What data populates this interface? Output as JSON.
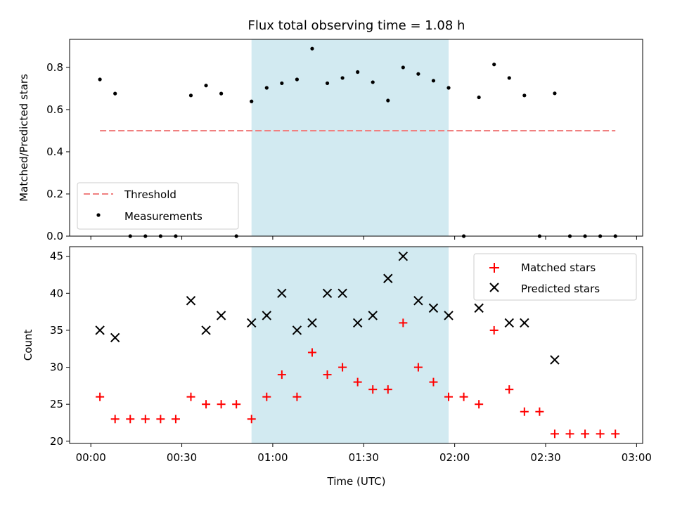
{
  "chart_data": [
    {
      "type": "scatter",
      "title": "Flux total observing time = 1.08 h",
      "ylabel": "Matched/Predicted stars",
      "xlabel": "",
      "xlim": [
        -7,
        182
      ],
      "ylim": [
        0,
        0.933
      ],
      "yticks": [
        0.0,
        0.2,
        0.4,
        0.6,
        0.8
      ],
      "ytick_labels": [
        "0.0",
        "0.2",
        "0.4",
        "0.6",
        "0.8"
      ],
      "xticks": [
        0,
        30,
        60,
        90,
        120,
        150,
        180
      ],
      "shaded_region": {
        "x0": 53,
        "x1": 118,
        "color": "#add8e6"
      },
      "threshold": {
        "name": "Threshold",
        "y": 0.5,
        "x0": 3,
        "x1": 173,
        "color": "#f08080"
      },
      "legend": {
        "placement": "lower-left",
        "entries": [
          "Threshold",
          "Measurements"
        ]
      },
      "series": [
        {
          "name": "Measurements",
          "color": "#000000",
          "x": [
            3,
            8,
            13,
            18,
            23,
            28,
            33,
            38,
            43,
            48,
            53,
            58,
            63,
            68,
            73,
            78,
            83,
            88,
            93,
            98,
            103,
            108,
            113,
            118,
            123,
            128,
            133,
            138,
            143,
            148,
            153,
            158,
            163,
            168,
            173
          ],
          "y": [
            0.743,
            0.676,
            0.0,
            0.0,
            0.0,
            0.0,
            0.667,
            0.714,
            0.676,
            0.0,
            0.639,
            0.703,
            0.725,
            0.743,
            0.889,
            0.725,
            0.75,
            0.778,
            0.73,
            0.643,
            0.8,
            0.769,
            0.737,
            0.703,
            0.0,
            0.658,
            0.814,
            0.75,
            0.667,
            0.0,
            0.677,
            0.0,
            0.0,
            0.0,
            0.0
          ]
        }
      ]
    },
    {
      "type": "scatter",
      "title": "",
      "ylabel": "Count",
      "xlabel": "Time (UTC)",
      "xlim": [
        -7,
        182
      ],
      "ylim": [
        19.7,
        46.3
      ],
      "yticks": [
        20,
        25,
        30,
        35,
        40,
        45
      ],
      "ytick_labels": [
        "20",
        "25",
        "30",
        "35",
        "40",
        "45"
      ],
      "xticks": [
        0,
        30,
        60,
        90,
        120,
        150,
        180
      ],
      "xtick_labels": [
        "00:00",
        "00:30",
        "01:00",
        "01:30",
        "02:00",
        "02:30",
        "03:00"
      ],
      "shaded_region": {
        "x0": 53,
        "x1": 118,
        "color": "#add8e6"
      },
      "legend": {
        "placement": "upper-right",
        "entries": [
          "Matched stars",
          "Predicted stars"
        ]
      },
      "series": [
        {
          "name": "Matched stars",
          "marker": "plus",
          "color": "#ff0000",
          "x": [
            3,
            8,
            13,
            18,
            23,
            28,
            33,
            38,
            43,
            48,
            53,
            58,
            63,
            68,
            73,
            78,
            83,
            88,
            93,
            98,
            103,
            108,
            113,
            118,
            123,
            128,
            133,
            138,
            143,
            148,
            153,
            158,
            163,
            168,
            173
          ],
          "y": [
            26,
            23,
            23,
            23,
            23,
            23,
            26,
            25,
            25,
            25,
            23,
            26,
            29,
            26,
            32,
            29,
            30,
            28,
            27,
            27,
            36,
            30,
            28,
            26,
            26,
            25,
            35,
            27,
            24,
            24,
            21,
            21,
            21,
            21,
            21
          ]
        },
        {
          "name": "Predicted stars",
          "marker": "x",
          "color": "#000000",
          "x": [
            3,
            8,
            33,
            38,
            43,
            53,
            58,
            63,
            68,
            73,
            78,
            83,
            88,
            93,
            98,
            103,
            108,
            113,
            118,
            128,
            138,
            143,
            153
          ],
          "y": [
            35,
            34,
            39,
            35,
            37,
            36,
            37,
            40,
            35,
            36,
            40,
            40,
            36,
            37,
            42,
            45,
            39,
            38,
            37,
            38,
            36,
            36,
            31
          ]
        }
      ]
    }
  ]
}
